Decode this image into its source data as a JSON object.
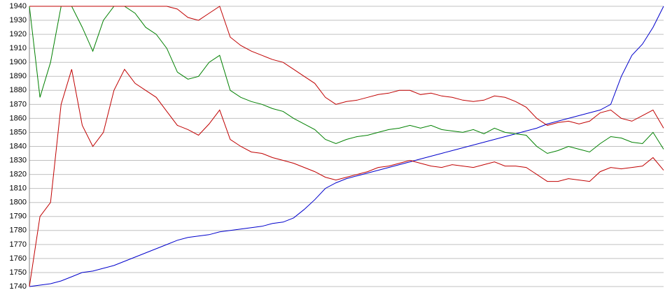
{
  "chart_data": {
    "type": "line",
    "ylim": [
      1740,
      1940
    ],
    "yticks": [
      1740,
      1750,
      1760,
      1770,
      1780,
      1790,
      1800,
      1810,
      1820,
      1830,
      1840,
      1850,
      1860,
      1870,
      1880,
      1890,
      1900,
      1910,
      1920,
      1930,
      1940
    ],
    "grid": true,
    "series": [
      {
        "color": "#0000cc",
        "values": [
          1740,
          1741,
          1742,
          1744,
          1747,
          1750,
          1751,
          1753,
          1755,
          1758,
          1761,
          1764,
          1767,
          1770,
          1773,
          1775,
          1776,
          1777,
          1779,
          1780,
          1781,
          1782,
          1783,
          1785,
          1786,
          1789,
          1795,
          1802,
          1810,
          1814,
          1817,
          1819,
          1821,
          1823,
          1825,
          1827,
          1829,
          1831,
          1833,
          1835,
          1837,
          1839,
          1841,
          1843,
          1845,
          1847,
          1849,
          1851,
          1853,
          1856,
          1858,
          1860,
          1862,
          1864,
          1866,
          1870,
          1890,
          1905,
          1913,
          1925,
          1940
        ]
      },
      {
        "color": "#008000",
        "values": [
          1940,
          1875,
          1900,
          1940,
          1940,
          1925,
          1908,
          1930,
          1940,
          1940,
          1935,
          1925,
          1920,
          1910,
          1893,
          1888,
          1890,
          1900,
          1905,
          1880,
          1875,
          1872,
          1870,
          1867,
          1865,
          1860,
          1856,
          1852,
          1845,
          1842,
          1845,
          1847,
          1848,
          1850,
          1852,
          1853,
          1855,
          1853,
          1855,
          1852,
          1851,
          1850,
          1852,
          1849,
          1853,
          1850,
          1849,
          1848,
          1840,
          1835,
          1837,
          1840,
          1838,
          1836,
          1842,
          1847,
          1846,
          1843,
          1842,
          1850,
          1838
        ]
      },
      {
        "color": "#c00000",
        "values": [
          1940,
          1940,
          1940,
          1940,
          1940,
          1940,
          1940,
          1940,
          1940,
          1940,
          1940,
          1940,
          1940,
          1940,
          1938,
          1932,
          1930,
          1935,
          1940,
          1918,
          1912,
          1908,
          1905,
          1902,
          1900,
          1895,
          1890,
          1885,
          1875,
          1870,
          1872,
          1873,
          1875,
          1877,
          1878,
          1880,
          1880,
          1877,
          1878,
          1876,
          1875,
          1873,
          1872,
          1873,
          1876,
          1875,
          1872,
          1868,
          1860,
          1855,
          1857,
          1858,
          1856,
          1858,
          1864,
          1866,
          1860,
          1858,
          1862,
          1866,
          1853
        ]
      },
      {
        "color": "#c00000",
        "values": [
          1740,
          1790,
          1800,
          1870,
          1895,
          1855,
          1840,
          1850,
          1880,
          1895,
          1885,
          1880,
          1875,
          1865,
          1855,
          1852,
          1848,
          1856,
          1866,
          1845,
          1840,
          1836,
          1835,
          1832,
          1830,
          1828,
          1825,
          1822,
          1818,
          1816,
          1818,
          1820,
          1822,
          1825,
          1826,
          1828,
          1830,
          1828,
          1826,
          1825,
          1827,
          1826,
          1825,
          1827,
          1829,
          1826,
          1826,
          1825,
          1820,
          1815,
          1815,
          1817,
          1816,
          1815,
          1822,
          1825,
          1824,
          1825,
          1826,
          1832,
          1823
        ]
      }
    ]
  }
}
